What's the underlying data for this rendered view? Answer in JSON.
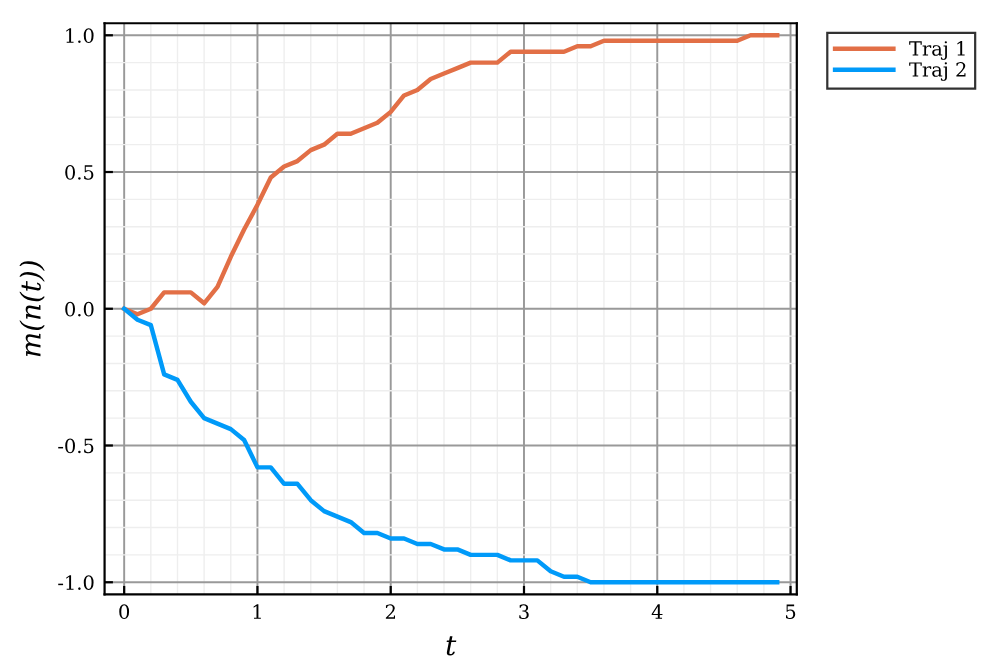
{
  "chart_data": {
    "type": "line",
    "xlabel": "t",
    "ylabel": "m(n(t))",
    "x": [
      0,
      0.1,
      0.2,
      0.3,
      0.4,
      0.5,
      0.6,
      0.7,
      0.8,
      0.9,
      1.0,
      1.1,
      1.2,
      1.3,
      1.4,
      1.5,
      1.6,
      1.7,
      1.8,
      1.9,
      2.0,
      2.1,
      2.2,
      2.3,
      2.4,
      2.5,
      2.6,
      2.7,
      2.8,
      2.9,
      3.0,
      3.1,
      3.2,
      3.3,
      3.4,
      3.5,
      3.6,
      3.7,
      3.8,
      3.9,
      4.0,
      4.1,
      4.2,
      4.3,
      4.4,
      4.5,
      4.6,
      4.7,
      4.8,
      4.9
    ],
    "series": [
      {
        "name": "Traj 1",
        "color": "#e26f46",
        "values": [
          0,
          -0.02,
          0,
          0.06,
          0.06,
          0.06,
          0.02,
          0.08,
          0.19,
          0.29,
          0.38,
          0.48,
          0.52,
          0.54,
          0.58,
          0.6,
          0.64,
          0.64,
          0.66,
          0.68,
          0.72,
          0.78,
          0.8,
          0.84,
          0.86,
          0.88,
          0.9,
          0.9,
          0.9,
          0.94,
          0.94,
          0.94,
          0.94,
          0.94,
          0.96,
          0.96,
          0.98,
          0.98,
          0.98,
          0.98,
          0.98,
          0.98,
          0.98,
          0.98,
          0.98,
          0.98,
          0.98,
          1.0,
          1.0,
          1.0
        ]
      },
      {
        "name": "Traj 2",
        "color": "#009af9",
        "values": [
          0,
          -0.04,
          -0.06,
          -0.24,
          -0.26,
          -0.34,
          -0.4,
          -0.42,
          -0.44,
          -0.48,
          -0.58,
          -0.58,
          -0.64,
          -0.64,
          -0.7,
          -0.74,
          -0.76,
          -0.78,
          -0.82,
          -0.82,
          -0.84,
          -0.84,
          -0.86,
          -0.86,
          -0.88,
          -0.88,
          -0.9,
          -0.9,
          -0.9,
          -0.92,
          -0.92,
          -0.92,
          -0.96,
          -0.98,
          -0.98,
          -1.0,
          -1.0,
          -1.0,
          -1.0,
          -1.0,
          -1.0,
          -1.0,
          -1.0,
          -1.0,
          -1.0,
          -1.0,
          -1.0,
          -1.0,
          -1.0,
          -1.0
        ]
      }
    ],
    "xlim": [
      -0.147,
      5.047
    ],
    "ylim": [
      -1.044,
      1.044
    ],
    "xticks": [
      0,
      1,
      2,
      3,
      4,
      5
    ],
    "yticks": [
      {
        "value": -1,
        "label": "-1.0"
      },
      {
        "value": -0.5,
        "label": "-0.5"
      },
      {
        "value": 0,
        "label": "0.0"
      },
      {
        "value": 0.5,
        "label": "0.5"
      },
      {
        "value": 1,
        "label": "1.0"
      }
    ],
    "grid": true,
    "legend": "top right",
    "marker": "none",
    "line_style": "solid"
  }
}
